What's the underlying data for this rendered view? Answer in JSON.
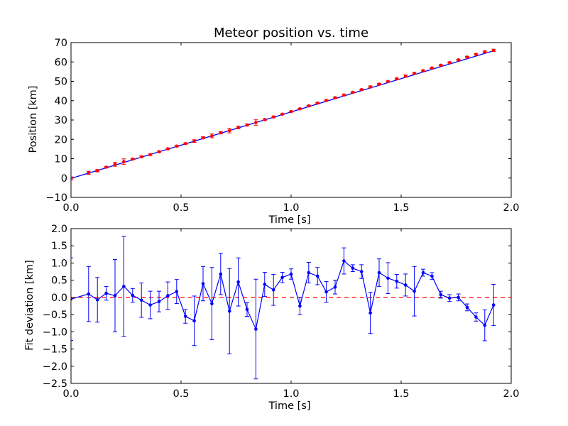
{
  "chart_data": [
    {
      "type": "scatter",
      "title": "Meteor position vs. time",
      "xlabel": "Time [s]",
      "ylabel": "Position [km]",
      "xlim": [
        0.0,
        2.0
      ],
      "ylim": [
        -10,
        70
      ],
      "xticks": [
        "0.0",
        "0.5",
        "1.0",
        "1.5",
        "2.0"
      ],
      "yticks": [
        "−10",
        "0",
        "10",
        "20",
        "30",
        "40",
        "50",
        "60",
        "70"
      ],
      "grid": false,
      "colors": {
        "points": "#ff0000",
        "fit": "#0000ff"
      },
      "fit_line": {
        "x": [
          0.0,
          1.92
        ],
        "y": [
          -0.2,
          65.8
        ]
      },
      "series": [
        {
          "marker": "red-dot",
          "x": [
            0.0,
            0.08,
            0.12,
            0.16,
            0.2,
            0.24,
            0.28,
            0.32,
            0.36,
            0.4,
            0.44,
            0.48,
            0.52,
            0.56,
            0.6,
            0.64,
            0.68,
            0.72,
            0.76,
            0.8,
            0.84,
            0.88,
            0.92,
            0.96,
            1.0,
            1.04,
            1.08,
            1.12,
            1.16,
            1.2,
            1.24,
            1.28,
            1.32,
            1.36,
            1.4,
            1.44,
            1.48,
            1.52,
            1.56,
            1.6,
            1.64,
            1.68,
            1.72,
            1.76,
            1.8,
            1.84,
            1.88,
            1.92
          ],
          "y": [
            -0.2,
            2.7,
            3.8,
            5.6,
            7.1,
            8.5,
            9.8,
            11.0,
            12.1,
            13.6,
            15.1,
            16.5,
            17.8,
            19.1,
            20.8,
            21.8,
            23.4,
            24.5,
            26.1,
            27.4,
            28.7,
            30.2,
            31.6,
            33.0,
            34.4,
            35.8,
            37.3,
            38.7,
            40.1,
            41.5,
            42.9,
            44.3,
            45.7,
            47.1,
            48.5,
            49.9,
            51.3,
            52.7,
            54.1,
            55.5,
            56.9,
            58.3,
            59.7,
            61.1,
            62.5,
            63.9,
            65.2,
            66.0
          ],
          "yerr": [
            0.8,
            0.8,
            0.6,
            0.3,
            1.0,
            1.4,
            0.3,
            0.4,
            0.4,
            0.3,
            0.4,
            0.4,
            0.3,
            0.7,
            0.5,
            1.0,
            0.6,
            1.2,
            0.7,
            0.5,
            1.4,
            0.4,
            0.4,
            0.3,
            0.3,
            0.3,
            0.3,
            0.3,
            0.3,
            0.3,
            0.4,
            0.3,
            0.3,
            0.5,
            0.4,
            0.3,
            0.3,
            0.6,
            0.5,
            0.3,
            0.3,
            0.3,
            0.3,
            0.3,
            0.3,
            0.3,
            0.4,
            0.6
          ]
        }
      ]
    },
    {
      "type": "line",
      "title": "",
      "xlabel": "Time [s]",
      "ylabel": "Fit deviation [km]",
      "xlim": [
        0.0,
        2.0
      ],
      "ylim": [
        -2.5,
        2.0
      ],
      "xticks": [
        "0.0",
        "0.5",
        "1.0",
        "1.5",
        "2.0"
      ],
      "yticks": [
        "−2.5",
        "−2.0",
        "−1.5",
        "−1.0",
        "−0.5",
        "0.0",
        "0.5",
        "1.0",
        "1.5",
        "2.0"
      ],
      "grid": false,
      "colors": {
        "series": "#0000ff",
        "zero_line": "#ff0000"
      },
      "zero_line": {
        "y": 0.0,
        "style": "dashed"
      },
      "series": [
        {
          "marker": "blue-dot-line",
          "x": [
            0.0,
            0.08,
            0.12,
            0.16,
            0.2,
            0.24,
            0.28,
            0.32,
            0.36,
            0.4,
            0.44,
            0.48,
            0.52,
            0.56,
            0.6,
            0.64,
            0.68,
            0.72,
            0.76,
            0.8,
            0.84,
            0.88,
            0.92,
            0.96,
            1.0,
            1.04,
            1.08,
            1.12,
            1.16,
            1.2,
            1.24,
            1.28,
            1.32,
            1.36,
            1.4,
            1.44,
            1.48,
            1.52,
            1.56,
            1.6,
            1.64,
            1.68,
            1.72,
            1.76,
            1.8,
            1.84,
            1.88,
            1.92
          ],
          "y": [
            -0.05,
            0.1,
            -0.07,
            0.12,
            0.05,
            0.32,
            0.06,
            -0.08,
            -0.22,
            -0.12,
            0.05,
            0.17,
            -0.55,
            -0.68,
            0.4,
            -0.18,
            0.68,
            -0.4,
            0.45,
            -0.35,
            -0.92,
            0.38,
            0.22,
            0.58,
            0.68,
            -0.25,
            0.72,
            0.62,
            0.16,
            0.3,
            1.06,
            0.85,
            0.75,
            -0.45,
            0.72,
            0.56,
            0.47,
            0.36,
            0.18,
            0.72,
            0.62,
            0.08,
            -0.02,
            0.0,
            -0.29,
            -0.57,
            -0.81,
            -0.22
          ],
          "yerr": [
            1.2,
            0.8,
            0.65,
            0.2,
            1.05,
            1.45,
            0.2,
            0.5,
            0.4,
            0.3,
            0.4,
            0.35,
            0.2,
            0.72,
            0.5,
            1.05,
            0.6,
            1.24,
            0.7,
            0.2,
            1.45,
            0.35,
            0.45,
            0.15,
            0.15,
            0.25,
            0.3,
            0.25,
            0.3,
            0.2,
            0.38,
            0.1,
            0.2,
            0.6,
            0.4,
            0.45,
            0.2,
            0.32,
            0.72,
            0.1,
            0.1,
            0.1,
            0.1,
            0.1,
            0.1,
            0.12,
            0.45,
            0.6
          ]
        }
      ]
    }
  ]
}
